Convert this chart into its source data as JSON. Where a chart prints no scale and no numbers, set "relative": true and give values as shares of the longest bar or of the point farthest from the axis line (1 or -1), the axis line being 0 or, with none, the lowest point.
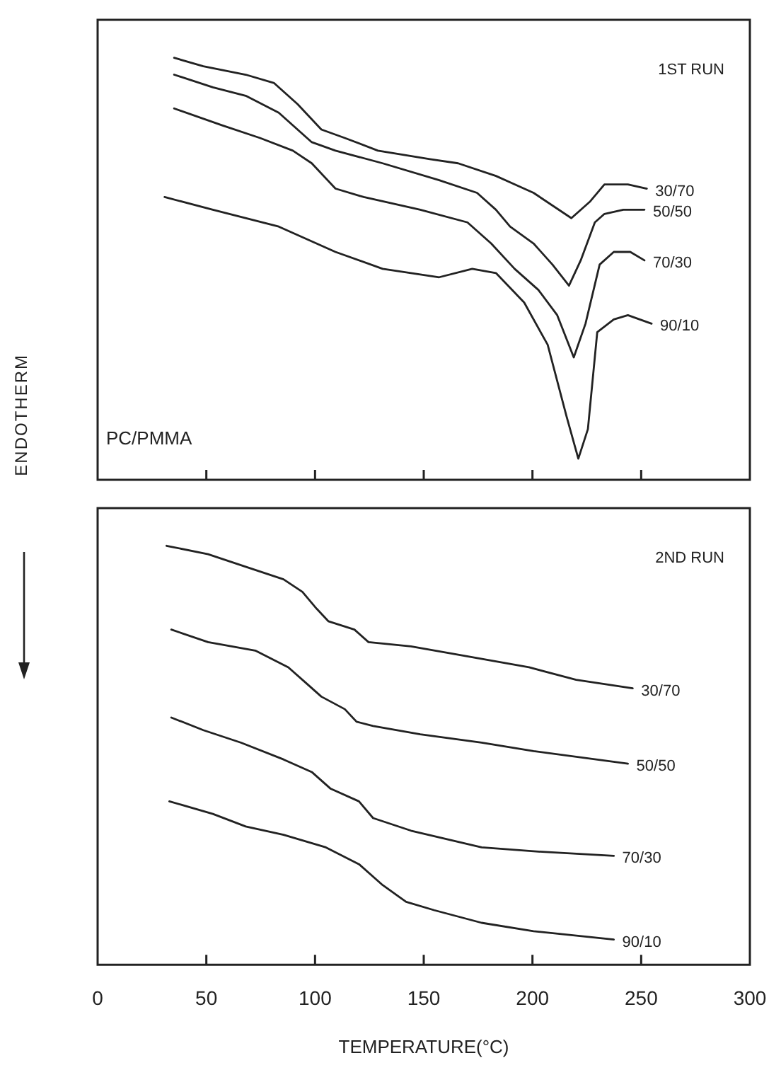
{
  "chart_data": [
    {
      "type": "line",
      "title": "1ST RUN",
      "ylabel": "ENDOTHERM",
      "annotations": [
        "PC/PMMA"
      ],
      "relative": true,
      "xlim": [
        0,
        300
      ],
      "xticks": [
        0,
        50,
        100,
        150,
        200,
        250,
        300
      ],
      "tick_labels": false,
      "series": [
        {
          "name": "30/70",
          "color": "#222222",
          "x": [
            35.2,
            48.6,
            68.1,
            81.2,
            92,
            102.9,
            113.7,
            128.9,
            152.8,
            165.8,
            183.2,
            200.5,
            217.9,
            226.6,
            233.1,
            243.9,
            252.6
          ],
          "values": [
            1.0,
            0.98,
            0.96,
            0.94,
            0.89,
            0.83,
            0.81,
            0.78,
            0.76,
            0.75,
            0.72,
            0.68,
            0.62,
            0.66,
            0.7,
            0.7,
            0.69
          ]
        },
        {
          "name": "50/50",
          "color": "#222222",
          "x": [
            35.2,
            53,
            68.1,
            83.3,
            98.5,
            109.4,
            131.1,
            157.1,
            174.5,
            183.2,
            189.7,
            200.5,
            209.2,
            216.8,
            222.2,
            228.7,
            233.1,
            241.8,
            251.5
          ],
          "values": [
            0.96,
            0.93,
            0.91,
            0.87,
            0.8,
            0.78,
            0.75,
            0.71,
            0.68,
            0.64,
            0.6,
            0.56,
            0.51,
            0.46,
            0.52,
            0.61,
            0.63,
            0.64,
            0.64
          ]
        },
        {
          "name": "70/30",
          "color": "#222222",
          "x": [
            35.2,
            57.3,
            74.7,
            89.8,
            98.5,
            109.4,
            122.4,
            148.4,
            170.1,
            181,
            191.8,
            202.7,
            211.4,
            219,
            224.4,
            230.9,
            237.4,
            245,
            251.5
          ],
          "values": [
            0.88,
            0.84,
            0.81,
            0.78,
            0.75,
            0.69,
            0.67,
            0.64,
            0.61,
            0.56,
            0.5,
            0.45,
            0.39,
            0.29,
            0.37,
            0.51,
            0.54,
            0.54,
            0.52
          ]
        },
        {
          "name": "90/10",
          "color": "#222222",
          "x": [
            30.8,
            53,
            83.3,
            109.4,
            131.1,
            157.1,
            172.3,
            183.2,
            196.2,
            207,
            215.7,
            221.1,
            225.5,
            229.8,
            237.4,
            243.9,
            254.8
          ],
          "values": [
            0.67,
            0.64,
            0.6,
            0.54,
            0.5,
            0.48,
            0.5,
            0.49,
            0.42,
            0.32,
            0.15,
            0.05,
            0.12,
            0.35,
            0.38,
            0.39,
            0.37
          ]
        }
      ]
    },
    {
      "type": "line",
      "title": "2ND RUN",
      "xlabel": "TEMPERATURE(°C)",
      "relative": true,
      "xlim": [
        0,
        300
      ],
      "xticks": [
        0,
        50,
        100,
        150,
        200,
        250,
        300
      ],
      "series": [
        {
          "name": "30/70",
          "color": "#222222",
          "x": [
            31.7,
            50.8,
            68.1,
            85.5,
            94.2,
            100.7,
            106.1,
            118.1,
            124.6,
            144.1,
            165.8,
            198.4,
            220.1,
            246.1
          ],
          "values": [
            1.0,
            0.98,
            0.95,
            0.92,
            0.89,
            0.85,
            0.82,
            0.8,
            0.77,
            0.76,
            0.74,
            0.71,
            0.68,
            0.66
          ]
        },
        {
          "name": "50/50",
          "color": "#222222",
          "x": [
            33.9,
            50.8,
            72.5,
            87.7,
            96.4,
            102.9,
            113.7,
            119.1,
            126.7,
            148.4,
            176.6,
            200.5,
            243.9
          ],
          "values": [
            0.8,
            0.77,
            0.75,
            0.71,
            0.67,
            0.64,
            0.61,
            0.58,
            0.57,
            0.55,
            0.53,
            0.51,
            0.48
          ]
        },
        {
          "name": "70/30",
          "color": "#222222",
          "x": [
            33.9,
            48.6,
            66,
            85.5,
            98.5,
            107.2,
            120.2,
            126.7,
            144.1,
            176.6,
            202.7,
            237.4
          ],
          "values": [
            0.59,
            0.56,
            0.53,
            0.49,
            0.46,
            0.42,
            0.39,
            0.35,
            0.32,
            0.28,
            0.27,
            0.26
          ]
        },
        {
          "name": "90/10",
          "color": "#222222",
          "x": [
            33,
            53,
            68.1,
            85.5,
            105,
            120.2,
            131.1,
            141.9,
            154.9,
            176.6,
            200.5,
            237.4
          ],
          "values": [
            0.39,
            0.36,
            0.33,
            0.31,
            0.28,
            0.24,
            0.19,
            0.15,
            0.13,
            0.1,
            0.08,
            0.06
          ]
        }
      ]
    }
  ]
}
